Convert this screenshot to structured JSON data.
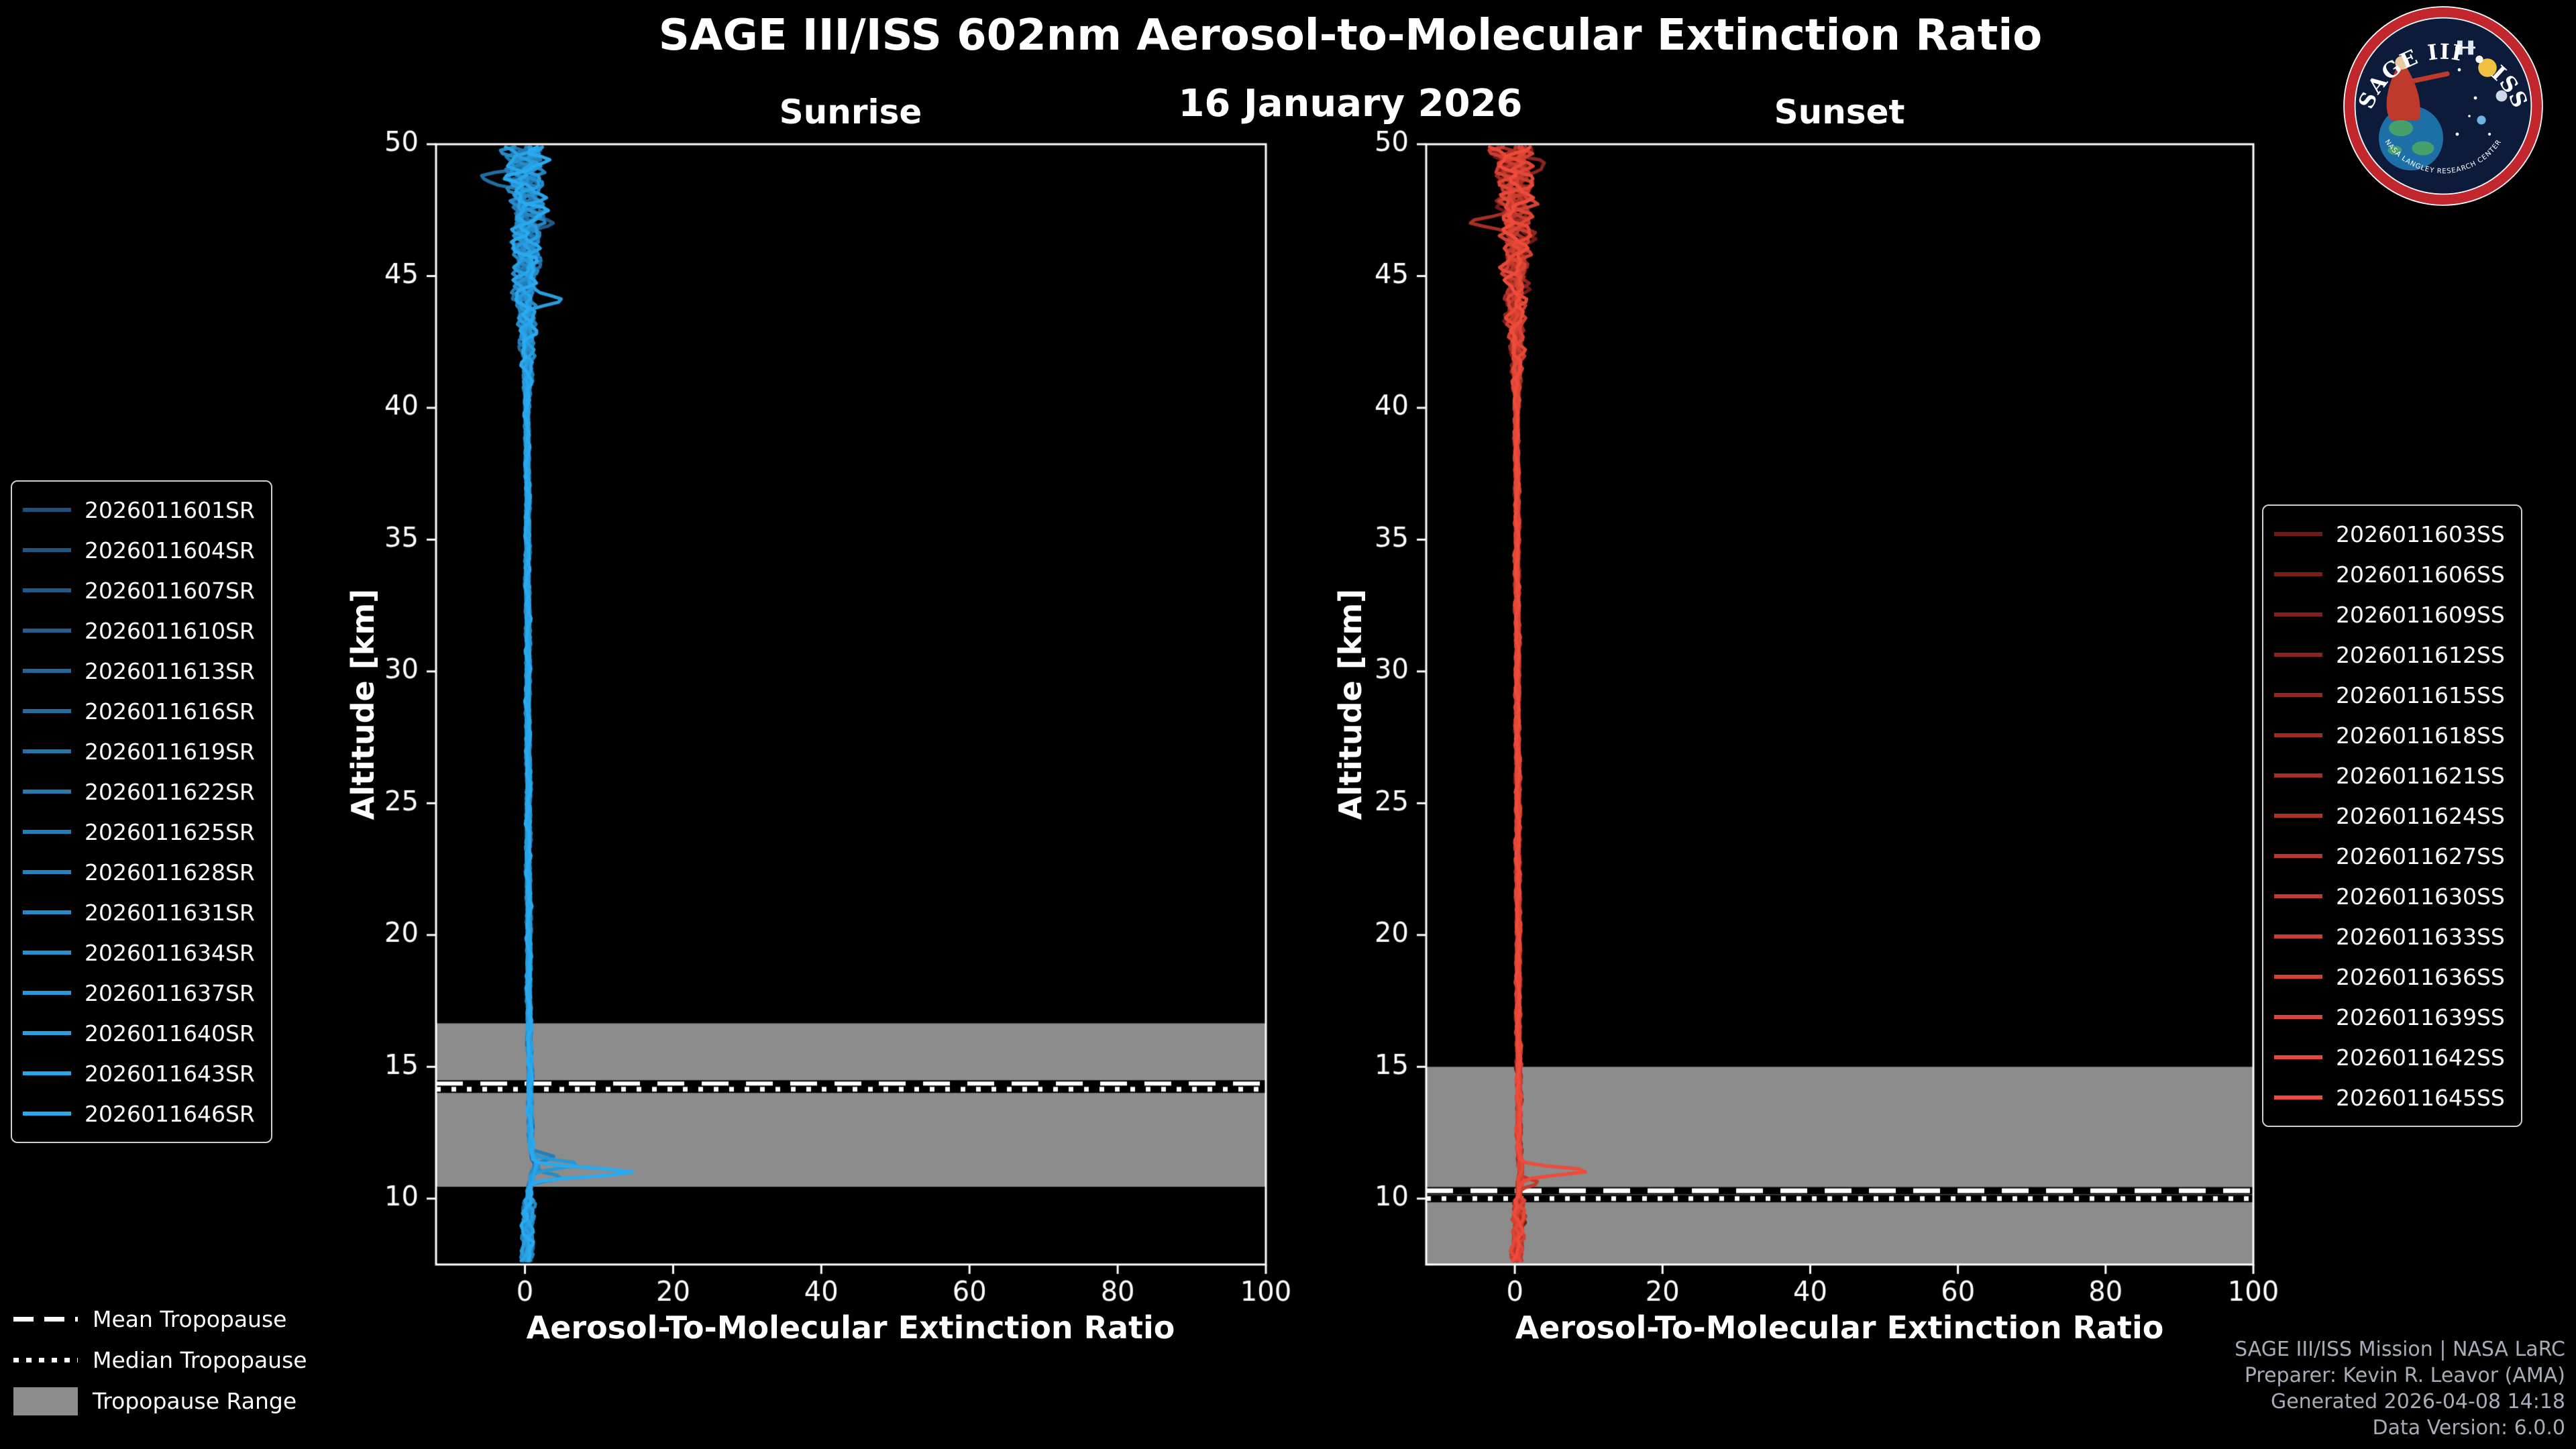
{
  "page": {
    "title": "SAGE III/ISS 602nm Aerosol-to-Molecular Extinction Ratio",
    "date": "16 January 2026"
  },
  "colors": {
    "background": "#000000",
    "axes": "#ffffff",
    "tropopause_band": "#8c8c8c",
    "tropopause_line": "#ffffff",
    "tropopause_line_shadow": "#000000"
  },
  "tropopause_legend": {
    "mean_label": "Mean Tropopause",
    "median_label": "Median Tropopause",
    "range_label": "Tropopause Range"
  },
  "footer": {
    "credit_lines": [
      "SAGE III/ISS Mission | NASA LaRC",
      "Preparer: Kevin R. Leavor (AMA)",
      "Generated 2026-04-08 14:18",
      "Data Version: 6.0.0"
    ]
  },
  "logo": {
    "title": "SAGE III • ISS",
    "arc_text": "NASA LANGLEY RESEARCH CENTER"
  },
  "chart_data": [
    {
      "type": "line",
      "panel": "sunrise",
      "title": "Sunrise",
      "xlabel": "Aerosol-To-Molecular Extinction Ratio",
      "ylabel": "Altitude [km]",
      "xlim": [
        -12,
        100
      ],
      "ylim": [
        7.5,
        50
      ],
      "xticks": [
        0,
        20,
        40,
        60,
        80,
        100
      ],
      "yticks": [
        10,
        15,
        20,
        25,
        30,
        35,
        40,
        45,
        50
      ],
      "grid": false,
      "legend_position": "outside-left",
      "color_start": "#1f4e79",
      "color_end": "#29aaf0",
      "tropopause": {
        "mean": 14.35,
        "median": 14.15,
        "range_min": 10.45,
        "range_max": 16.65
      },
      "profile": [
        [
          7.5,
          0.2
        ],
        [
          8.5,
          0.3
        ],
        [
          9.5,
          0.4
        ],
        [
          10.3,
          0.5
        ],
        [
          10.9,
          1.0
        ],
        [
          11.3,
          1.6
        ],
        [
          11.8,
          0.9
        ],
        [
          13,
          0.7
        ],
        [
          16,
          0.6
        ],
        [
          20,
          0.5
        ],
        [
          25,
          0.45
        ],
        [
          30,
          0.4
        ],
        [
          35,
          0.35
        ],
        [
          40,
          0.3
        ],
        [
          45,
          0.2
        ],
        [
          50,
          0.1
        ]
      ],
      "features": [
        {
          "series_index": 15,
          "altitude": 11.0,
          "peak": 13.5,
          "width": 0.22
        },
        {
          "series_index": 12,
          "altitude": 11.3,
          "peak": 6.0,
          "width": 0.2
        },
        {
          "series_index": 10,
          "altitude": 10.8,
          "peak": 4.0,
          "width": 0.18
        },
        {
          "series_index": 8,
          "altitude": 11.6,
          "peak": 3.0,
          "width": 0.18
        },
        {
          "series_index": 13,
          "altitude": 44.1,
          "peak": 3.6,
          "width": 0.3
        },
        {
          "series_index": 5,
          "altitude": 48.7,
          "peak": -3.2,
          "width": 0.35
        },
        {
          "series_index": 2,
          "altitude": 46.9,
          "peak": 2.8,
          "width": 0.3
        }
      ],
      "series": [
        {
          "name": "2026011601SR"
        },
        {
          "name": "2026011604SR"
        },
        {
          "name": "2026011607SR"
        },
        {
          "name": "2026011610SR"
        },
        {
          "name": "2026011613SR"
        },
        {
          "name": "2026011616SR"
        },
        {
          "name": "2026011619SR"
        },
        {
          "name": "2026011622SR"
        },
        {
          "name": "2026011625SR"
        },
        {
          "name": "2026011628SR"
        },
        {
          "name": "2026011631SR"
        },
        {
          "name": "2026011634SR"
        },
        {
          "name": "2026011637SR"
        },
        {
          "name": "2026011640SR"
        },
        {
          "name": "2026011643SR"
        },
        {
          "name": "2026011646SR"
        }
      ]
    },
    {
      "type": "line",
      "panel": "sunset",
      "title": "Sunset",
      "xlabel": "Aerosol-To-Molecular Extinction Ratio",
      "ylabel": "Altitude [km]",
      "xlim": [
        -12,
        100
      ],
      "ylim": [
        7.5,
        50
      ],
      "xticks": [
        0,
        20,
        40,
        60,
        80,
        100
      ],
      "yticks": [
        10,
        15,
        20,
        25,
        30,
        35,
        40,
        45,
        50
      ],
      "grid": false,
      "legend_position": "outside-right",
      "color_start": "#701a16",
      "color_end": "#ef4b3a",
      "tropopause": {
        "mean": 10.3,
        "median": 10.0,
        "range_min": 7.5,
        "range_max": 15.0
      },
      "profile": [
        [
          7.5,
          0.3
        ],
        [
          9,
          0.4
        ],
        [
          10,
          0.5
        ],
        [
          11,
          0.8
        ],
        [
          12,
          0.6
        ],
        [
          15,
          0.5
        ],
        [
          20,
          0.45
        ],
        [
          30,
          0.35
        ],
        [
          40,
          0.25
        ],
        [
          45,
          0.15
        ],
        [
          50,
          0.05
        ]
      ],
      "features": [
        {
          "series_index": 14,
          "altitude": 11.05,
          "peak": 9.0,
          "width": 0.2
        },
        {
          "series_index": 9,
          "altitude": 10.6,
          "peak": 2.5,
          "width": 0.18
        },
        {
          "series_index": 6,
          "altitude": 47.0,
          "peak": -7.0,
          "width": 0.3
        },
        {
          "series_index": 3,
          "altitude": 49.2,
          "peak": 2.6,
          "width": 0.3
        },
        {
          "series_index": 11,
          "altitude": 44.6,
          "peak": 2.2,
          "width": 0.25
        }
      ],
      "series": [
        {
          "name": "2026011603SS"
        },
        {
          "name": "2026011606SS"
        },
        {
          "name": "2026011609SS"
        },
        {
          "name": "2026011612SS"
        },
        {
          "name": "2026011615SS"
        },
        {
          "name": "2026011618SS"
        },
        {
          "name": "2026011621SS"
        },
        {
          "name": "2026011624SS"
        },
        {
          "name": "2026011627SS"
        },
        {
          "name": "2026011630SS"
        },
        {
          "name": "2026011633SS"
        },
        {
          "name": "2026011636SS"
        },
        {
          "name": "2026011639SS"
        },
        {
          "name": "2026011642SS"
        },
        {
          "name": "2026011645SS"
        }
      ]
    }
  ]
}
